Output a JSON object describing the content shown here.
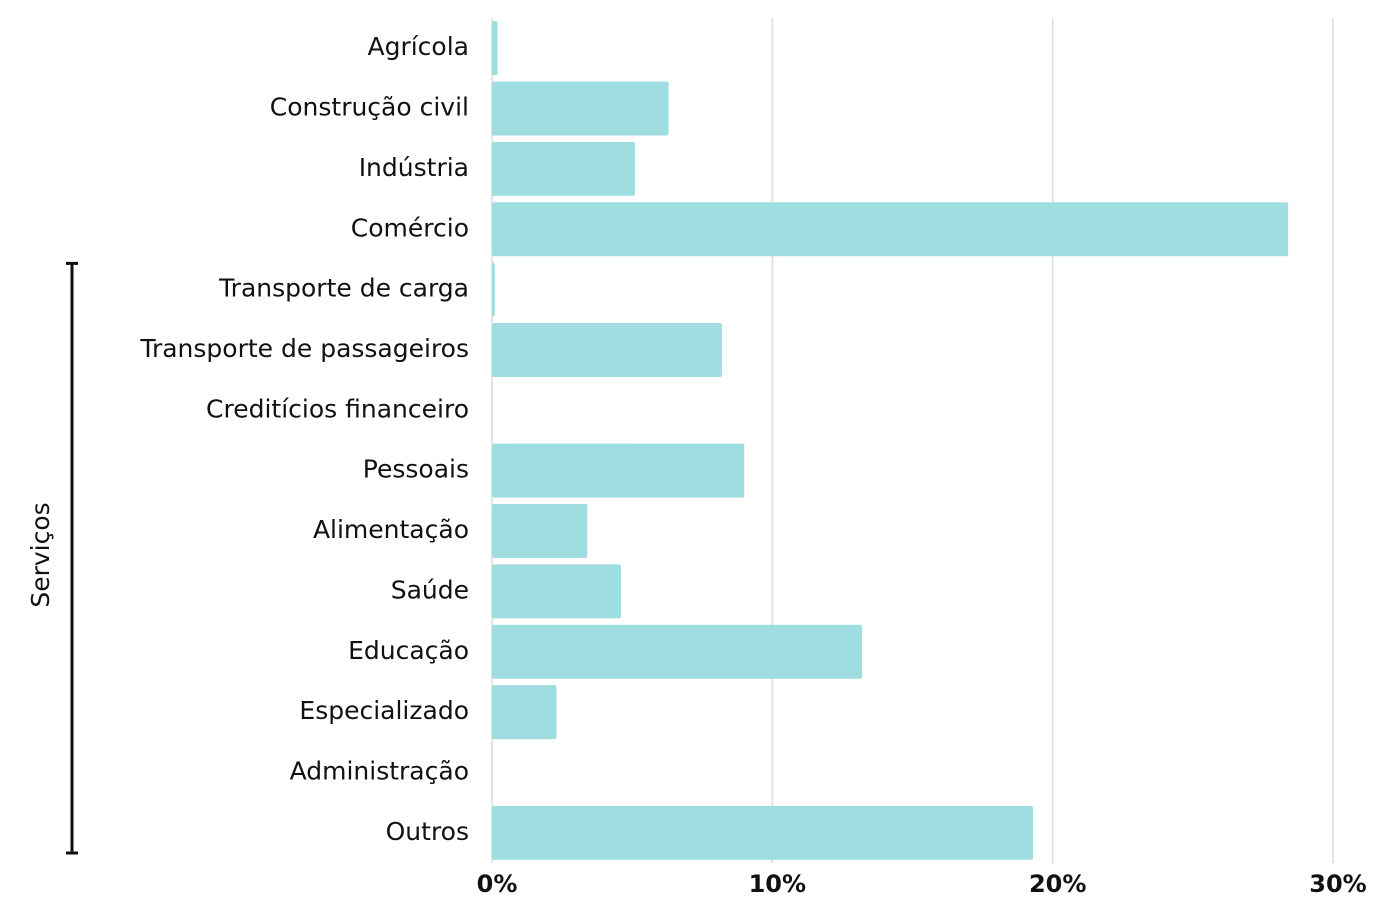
{
  "chart_data": {
    "type": "barh",
    "categories": [
      "Agrícola",
      "Construção civil",
      "Indústria",
      "Comércio",
      "Transporte de carga",
      "Transporte de passageiros",
      "Creditícios financeiro",
      "Pessoais",
      "Alimentação",
      "Saúde",
      "Educação",
      "Especializado",
      "Administração",
      "Outros"
    ],
    "values": [
      0.2,
      6.3,
      5.1,
      28.4,
      0.1,
      8.2,
      0,
      9.0,
      3.4,
      4.6,
      13.2,
      2.3,
      0,
      19.3
    ],
    "color": "#a0dde0",
    "xlim": [
      0,
      30
    ],
    "xticks": [
      {
        "value": 0,
        "label": "0%"
      },
      {
        "value": 10,
        "label": "10%"
      },
      {
        "value": 20,
        "label": "20%"
      },
      {
        "value": 30,
        "label": "30%"
      }
    ],
    "grid": true,
    "group": {
      "label": "Serviços",
      "first": "Transporte de carga",
      "last": "Outros"
    }
  }
}
